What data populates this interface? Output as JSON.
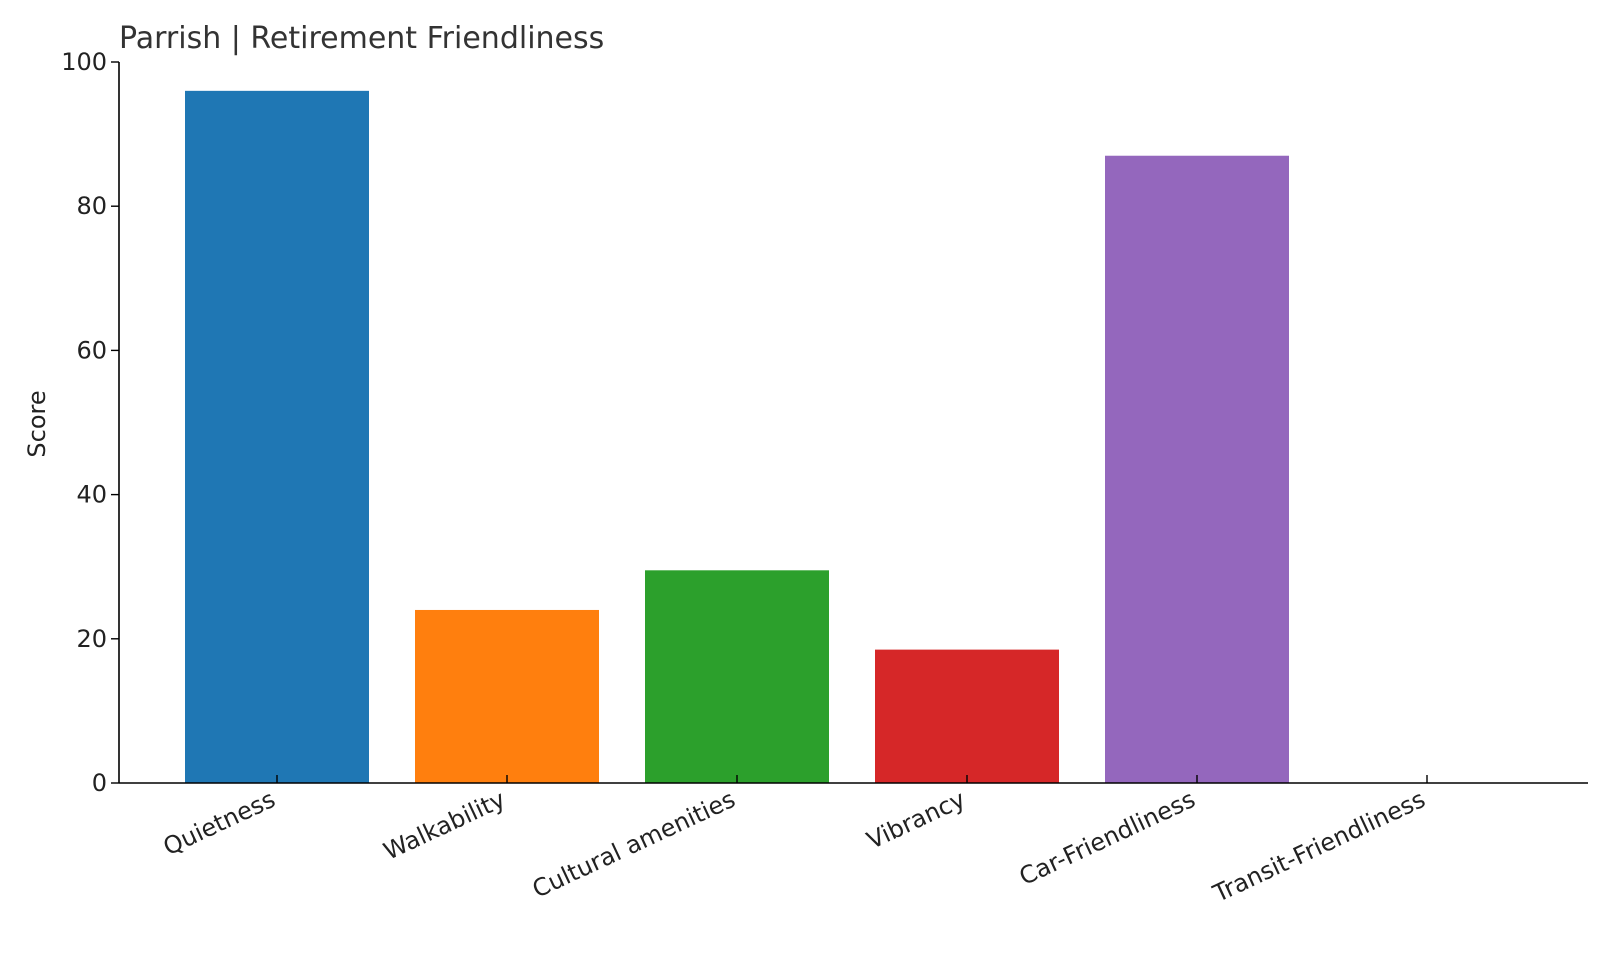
{
  "chart_data": {
    "type": "bar",
    "title": "Parrish | Retirement Friendliness",
    "xlabel": "",
    "ylabel": "Score",
    "ylim": [
      0,
      100
    ],
    "yticks": [
      0,
      20,
      40,
      60,
      80,
      100
    ],
    "grid": false,
    "categories": [
      "Quietness",
      "Walkability",
      "Cultural amenities",
      "Vibrancy",
      "Car-Friendliness",
      "Transit-Friendliness"
    ],
    "values": [
      96,
      24,
      29.5,
      18.5,
      87,
      0
    ],
    "colors": [
      "#1f77b4",
      "#ff7f0e",
      "#2ca02c",
      "#d62728",
      "#9467bd",
      "#8c564b"
    ]
  }
}
